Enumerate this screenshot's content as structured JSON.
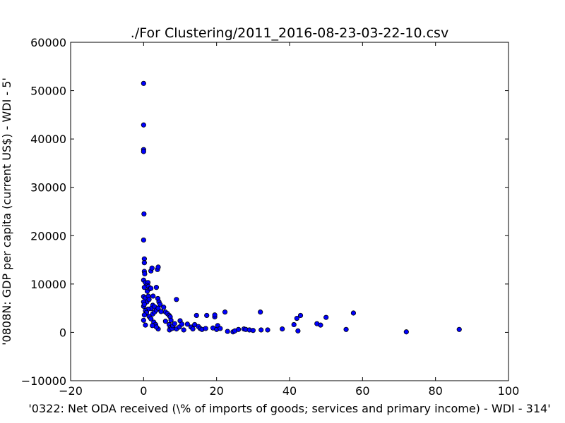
{
  "chart_data": {
    "type": "scatter",
    "title": "./For Clustering/2011_2016-08-23-03-22-10.csv",
    "xlabel": "'0322: Net ODA received  (\\% of imports of goods; services and primary income) - WDI - 314'",
    "ylabel": "'0808N: GDP per capita  (current US$) - WDI - 5'",
    "xlim": [
      -20,
      100
    ],
    "ylim": [
      -10000,
      60000
    ],
    "xticks": [
      -20,
      0,
      20,
      40,
      60,
      80,
      100
    ],
    "yticks": [
      -10000,
      0,
      10000,
      20000,
      30000,
      40000,
      50000,
      60000
    ],
    "xtick_labels": [
      "−20",
      "0",
      "20",
      "40",
      "60",
      "80",
      "100"
    ],
    "ytick_labels": [
      "−10000",
      "0",
      "10000",
      "20000",
      "30000",
      "40000",
      "50000",
      "60000"
    ],
    "grid": false,
    "marker_color": "#0000ff",
    "marker_edge_color": "#000000",
    "points": [
      [
        0.0,
        51500
      ],
      [
        0.0,
        42900
      ],
      [
        0.0,
        37800
      ],
      [
        0.0,
        37400
      ],
      [
        0.1,
        24500
      ],
      [
        0.0,
        19100
      ],
      [
        0.2,
        15200
      ],
      [
        0.2,
        14400
      ],
      [
        0.2,
        12600
      ],
      [
        0.3,
        12100
      ],
      [
        0.0,
        10800
      ],
      [
        0.5,
        10300
      ],
      [
        1.2,
        10300
      ],
      [
        1.0,
        9700
      ],
      [
        0.2,
        9300
      ],
      [
        1.3,
        9500
      ],
      [
        0.0,
        7400
      ],
      [
        0.5,
        7100
      ],
      [
        0.9,
        6300
      ],
      [
        0.0,
        6300
      ],
      [
        0.0,
        5400
      ],
      [
        0.2,
        5800
      ],
      [
        1.0,
        8500
      ],
      [
        1.3,
        7500
      ],
      [
        1.5,
        6800
      ],
      [
        1.7,
        9000
      ],
      [
        2.0,
        12700
      ],
      [
        2.3,
        13300
      ],
      [
        2.0,
        9100
      ],
      [
        2.6,
        7500
      ],
      [
        3.5,
        9300
      ],
      [
        3.8,
        13000
      ],
      [
        4.0,
        13500
      ],
      [
        3.9,
        7000
      ],
      [
        4.2,
        6300
      ],
      [
        4.5,
        5800
      ],
      [
        2.5,
        5600
      ],
      [
        3.0,
        5300
      ],
      [
        2.0,
        4900
      ],
      [
        1.2,
        4800
      ],
      [
        0.5,
        4500
      ],
      [
        0.8,
        4100
      ],
      [
        0.2,
        3600
      ],
      [
        1.5,
        3300
      ],
      [
        2.5,
        3800
      ],
      [
        3.0,
        4200
      ],
      [
        3.5,
        4600
      ],
      [
        4.0,
        5000
      ],
      [
        4.8,
        4300
      ],
      [
        5.5,
        5200
      ],
      [
        6.0,
        4200
      ],
      [
        6.5,
        3900
      ],
      [
        7.0,
        3500
      ],
      [
        7.3,
        3200
      ],
      [
        7.5,
        2500
      ],
      [
        2.0,
        2800
      ],
      [
        2.8,
        2100
      ],
      [
        3.3,
        1600
      ],
      [
        2.4,
        1400
      ],
      [
        0.0,
        2500
      ],
      [
        0.5,
        1500
      ],
      [
        4.0,
        700
      ],
      [
        3.5,
        1100
      ],
      [
        6.0,
        2300
      ],
      [
        7.0,
        1600
      ],
      [
        7.3,
        1000
      ],
      [
        7.1,
        500
      ],
      [
        7.8,
        800
      ],
      [
        8.0,
        1400
      ],
      [
        8.5,
        1800
      ],
      [
        9.0,
        700
      ],
      [
        9.0,
        6800
      ],
      [
        9.8,
        1100
      ],
      [
        10.0,
        2400
      ],
      [
        10.5,
        1700
      ],
      [
        11.0,
        500
      ],
      [
        12.0,
        1700
      ],
      [
        13.0,
        1100
      ],
      [
        13.5,
        700
      ],
      [
        14.0,
        1600
      ],
      [
        14.5,
        3500
      ],
      [
        15.0,
        1200
      ],
      [
        15.5,
        800
      ],
      [
        16.0,
        600
      ],
      [
        17.0,
        800
      ],
      [
        17.3,
        3500
      ],
      [
        19.0,
        900
      ],
      [
        19.5,
        3200
      ],
      [
        19.5,
        3600
      ],
      [
        20.0,
        600
      ],
      [
        20.3,
        1400
      ],
      [
        21.0,
        800
      ],
      [
        22.3,
        4200
      ],
      [
        23.0,
        200
      ],
      [
        24.5,
        100
      ],
      [
        25.0,
        300
      ],
      [
        26.0,
        600
      ],
      [
        27.5,
        700
      ],
      [
        28.0,
        600
      ],
      [
        29.0,
        500
      ],
      [
        30.0,
        400
      ],
      [
        32.0,
        4200
      ],
      [
        32.2,
        500
      ],
      [
        34.0,
        500
      ],
      [
        38.0,
        700
      ],
      [
        41.2,
        1600
      ],
      [
        42.0,
        2900
      ],
      [
        42.3,
        300
      ],
      [
        43.0,
        3500
      ],
      [
        47.5,
        1800
      ],
      [
        48.5,
        1500
      ],
      [
        50.0,
        3100
      ],
      [
        55.5,
        600
      ],
      [
        57.5,
        4000
      ],
      [
        72.0,
        100
      ],
      [
        86.5,
        600
      ]
    ]
  }
}
